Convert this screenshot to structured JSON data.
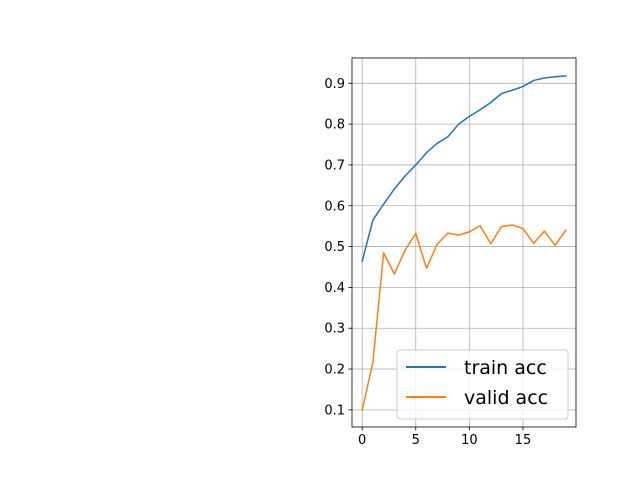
{
  "chart_data": {
    "type": "line",
    "title": "",
    "xlabel": "",
    "ylabel": "",
    "xlim": [
      -0.95,
      19.95
    ],
    "ylim": [
      0.058,
      0.962
    ],
    "xticks": [
      0,
      5,
      10,
      15
    ],
    "yticks": [
      0.1,
      0.2,
      0.3,
      0.4,
      0.5,
      0.6,
      0.7,
      0.8,
      0.9
    ],
    "xtick_labels": [
      "0",
      "5",
      "10",
      "15"
    ],
    "ytick_labels": [
      "0.1",
      "0.2",
      "0.3",
      "0.4",
      "0.5",
      "0.6",
      "0.7",
      "0.8",
      "0.9"
    ],
    "grid": true,
    "legend_position": "lower-right",
    "x": [
      0,
      1,
      2,
      3,
      4,
      5,
      6,
      7,
      8,
      9,
      10,
      11,
      12,
      13,
      14,
      15,
      16,
      17,
      18,
      19
    ],
    "series": [
      {
        "name": "train acc",
        "color": "#1f77b4",
        "values": [
          0.464,
          0.565,
          0.604,
          0.641,
          0.673,
          0.7,
          0.73,
          0.753,
          0.769,
          0.8,
          0.819,
          0.835,
          0.853,
          0.875,
          0.883,
          0.892,
          0.907,
          0.913,
          0.916,
          0.918
        ]
      },
      {
        "name": "valid acc",
        "color": "#ff7f0e",
        "values": [
          0.099,
          0.217,
          0.485,
          0.433,
          0.491,
          0.532,
          0.447,
          0.506,
          0.533,
          0.528,
          0.536,
          0.551,
          0.507,
          0.549,
          0.553,
          0.544,
          0.508,
          0.538,
          0.503,
          0.54
        ]
      }
    ]
  }
}
